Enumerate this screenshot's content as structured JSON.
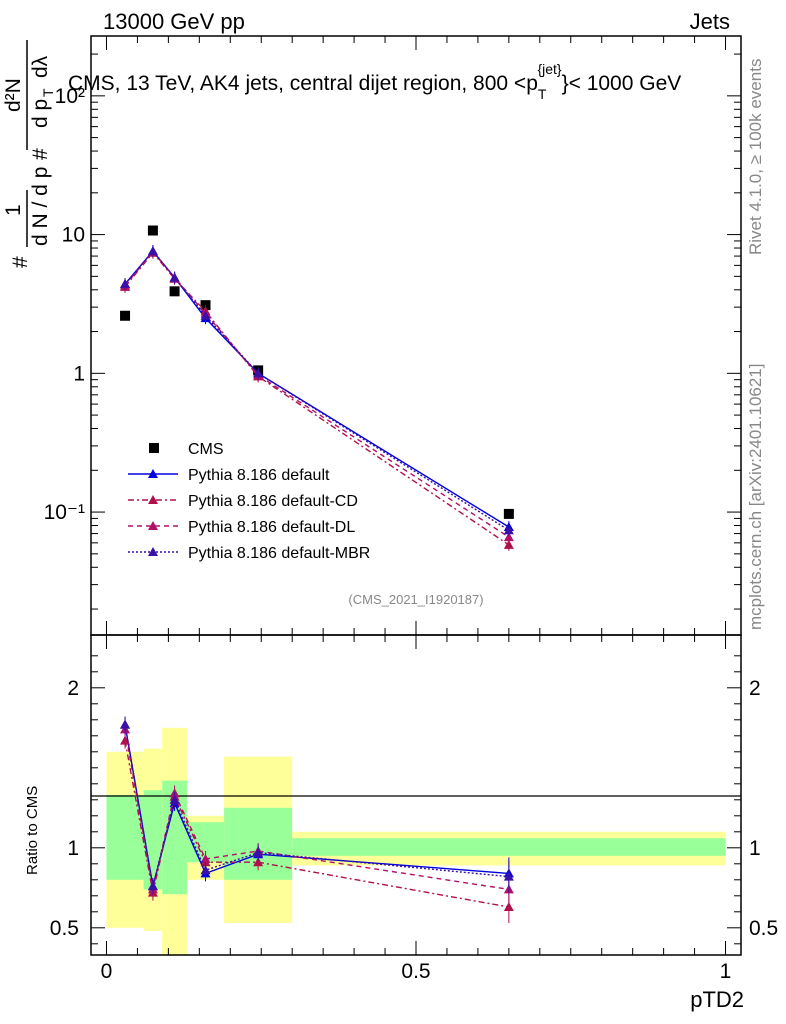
{
  "header": {
    "beam": "13000 GeV pp",
    "category": "Jets",
    "side_rivet": "Rivet 4.1.0, ≥ 100k events",
    "side_mcplots": "mcplots.cern.ch [arXiv:2401.10621]"
  },
  "chart_data": [
    {
      "type": "scatter",
      "panel": "main",
      "title": "CMS, 13 TeV, AK4 jets, central dijet region, 800 <p_T^{jet}< 1000 GeV",
      "title_parts": {
        "prefix": "CMS, 13 TeV, AK4 jets, central dijet region, 800 <p",
        "sub": "T",
        "sup": "{jet}",
        "suffix": "}< 1000 GeV"
      },
      "ylabel": "1/N dN/dp_T d²N/dp_T dλ",
      "ylabel_parts": {
        "hash1": "#",
        "hash2": "#",
        "one": "1",
        "dn": "d N / d p",
        "d2n": "d²N",
        "dpt": "d p",
        "dlambda": "dλ",
        "T": "T"
      },
      "yscale": "log",
      "ylim": [
        0.013,
        270
      ],
      "y_ticks": [
        {
          "value": 0.1,
          "label": "10⁻¹"
        },
        {
          "value": 1,
          "label": "1"
        },
        {
          "value": 10,
          "label": "10"
        },
        {
          "value": 100,
          "label": "10²"
        }
      ],
      "xlim": [
        -0.025,
        1.025
      ],
      "watermark": "(CMS_2021_I1920187)",
      "legend_position": "bottom-left",
      "series": [
        {
          "name": "CMS",
          "style": "black-square",
          "color": "#000000",
          "x": [
            0.03,
            0.075,
            0.11,
            0.16,
            0.245,
            0.65
          ],
          "y": [
            2.6,
            10.7,
            3.9,
            3.1,
            1.05,
            0.097
          ]
        },
        {
          "name": "Pythia 8.186 default",
          "style": "solid",
          "color": "#0000dd",
          "x": [
            0.03,
            0.075,
            0.11,
            0.16,
            0.245,
            0.65
          ],
          "y": [
            4.4,
            7.6,
            4.9,
            2.5,
            1.0,
            0.078
          ]
        },
        {
          "name": "Pythia 8.186 default-CD",
          "style": "dashdot",
          "color": "#b0104a",
          "x": [
            0.03,
            0.075,
            0.11,
            0.16,
            0.245,
            0.65
          ],
          "y": [
            4.2,
            7.4,
            4.8,
            2.8,
            0.95,
            0.058
          ]
        },
        {
          "name": "Pythia 8.186 default-DL",
          "style": "dashed",
          "color": "#b0106a",
          "x": [
            0.03,
            0.075,
            0.11,
            0.16,
            0.245,
            0.65
          ],
          "y": [
            4.3,
            7.5,
            4.9,
            2.7,
            0.97,
            0.066
          ]
        },
        {
          "name": "Pythia 8.186 default-MBR",
          "style": "dotted",
          "color": "#3a10a8",
          "x": [
            0.03,
            0.075,
            0.11,
            0.16,
            0.245,
            0.65
          ],
          "y": [
            4.4,
            7.6,
            4.9,
            2.6,
            1.0,
            0.074
          ]
        }
      ]
    },
    {
      "type": "line",
      "panel": "ratio",
      "ylabel": "Ratio to CMS",
      "xlabel": "pTD2",
      "ylim": [
        0.33,
        2.33
      ],
      "y_ticks": [
        {
          "value": 0.5,
          "label": "0.5"
        },
        {
          "value": 1,
          "label": "1"
        },
        {
          "value": 2,
          "label": "2"
        }
      ],
      "x_ticks": [
        {
          "value": 0,
          "label": "0"
        },
        {
          "value": 0.5,
          "label": "0.5"
        },
        {
          "value": 1,
          "label": "1"
        }
      ],
      "xlim": [
        -0.025,
        1.025
      ],
      "bands": [
        {
          "x0": 0.0,
          "x1": 0.06,
          "yellow": [
            0.5,
            1.6
          ],
          "green": [
            0.8,
            1.33
          ]
        },
        {
          "x0": 0.06,
          "x1": 0.09,
          "yellow": [
            0.48,
            1.62
          ],
          "green": [
            0.74,
            1.36
          ]
        },
        {
          "x0": 0.09,
          "x1": 0.13,
          "yellow": [
            0.33,
            1.75
          ],
          "green": [
            0.71,
            1.42
          ]
        },
        {
          "x0": 0.13,
          "x1": 0.19,
          "yellow": [
            0.8,
            1.2
          ],
          "green": [
            0.91,
            1.16
          ]
        },
        {
          "x0": 0.19,
          "x1": 0.3,
          "yellow": [
            0.53,
            1.57
          ],
          "green": [
            0.8,
            1.25
          ]
        },
        {
          "x0": 0.3,
          "x1": 1.0,
          "yellow": [
            0.89,
            1.1
          ],
          "green": [
            0.95,
            1.06
          ]
        }
      ],
      "series": [
        {
          "name": "Pythia 8.186 default",
          "color": "#0000dd",
          "x": [
            0.03,
            0.075,
            0.11,
            0.16,
            0.245,
            0.65
          ],
          "y": [
            1.77,
            0.76,
            1.28,
            0.84,
            0.96,
            0.84
          ]
        },
        {
          "name": "Pythia 8.186 default-CD",
          "color": "#b0104a",
          "x": [
            0.03,
            0.075,
            0.11,
            0.16,
            0.245,
            0.65
          ],
          "y": [
            1.67,
            0.72,
            1.32,
            0.91,
            0.91,
            0.63
          ]
        },
        {
          "name": "Pythia 8.186 default-DL",
          "color": "#b0106a",
          "x": [
            0.03,
            0.075,
            0.11,
            0.16,
            0.245,
            0.65
          ],
          "y": [
            1.74,
            0.74,
            1.34,
            0.93,
            0.98,
            0.74
          ]
        },
        {
          "name": "Pythia 8.186 default-MBR",
          "color": "#3a10a8",
          "x": [
            0.03,
            0.075,
            0.11,
            0.16,
            0.245,
            0.65
          ],
          "y": [
            1.77,
            0.76,
            1.3,
            0.86,
            0.97,
            0.82
          ]
        }
      ]
    }
  ]
}
